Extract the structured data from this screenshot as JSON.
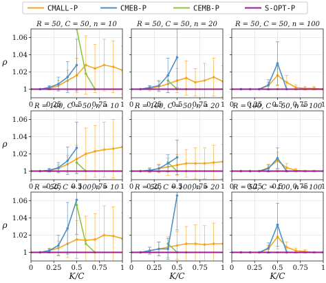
{
  "chart_data": {
    "type": "line",
    "legend": {
      "placement": "top",
      "entries": [
        {
          "name": "CMALL-P",
          "color": "#f5a623"
        },
        {
          "name": "CMEB-P",
          "color": "#4a90c8"
        },
        {
          "name": "CEMB-P",
          "color": "#8cc63f"
        },
        {
          "name": "S-OPT-P",
          "color": "#9b1b8e"
        }
      ]
    },
    "xlabel": "K/C",
    "ylabel": "ρ",
    "xlim": [
      0,
      1
    ],
    "ylim": [
      0.99,
      1.07
    ],
    "x_ticks": [
      "0",
      "0.25",
      "0.5",
      "0.75",
      "1"
    ],
    "y_ticks": [
      "1",
      "1.02",
      "1.04",
      "1.06"
    ],
    "y_tick_values": [
      1.0,
      1.02,
      1.04,
      1.06
    ],
    "x_tick_values": [
      0,
      0.25,
      0.5,
      0.75,
      1
    ],
    "panels": [
      {
        "title": "R = 50, C = 50, n = 10",
        "series": [
          {
            "name": "CMALL-P",
            "x": [
              0,
              0.1,
              0.2,
              0.3,
              0.4,
              0.5,
              0.6,
              0.7,
              0.8,
              0.9,
              1.0
            ],
            "y": [
              1.0,
              1.0,
              1.001,
              1.004,
              1.01,
              1.016,
              1.028,
              1.024,
              1.028,
              1.026,
              1.022
            ],
            "err": [
              0,
              0,
              0.002,
              0.006,
              0.012,
              0.02,
              0.034,
              0.028,
              0.03,
              0.03,
              0.028
            ]
          },
          {
            "name": "CMEB-P",
            "x": [
              0,
              0.1,
              0.2,
              0.3,
              0.4,
              0.5
            ],
            "y": [
              1.0,
              1.0,
              1.002,
              1.006,
              1.014,
              1.028
            ],
            "err": [
              0,
              0,
              0.002,
              0.008,
              0.018,
              0.03
            ]
          },
          {
            "name": "CEMB-P",
            "x": [
              0.5,
              0.6,
              0.7
            ],
            "y": [
              1.07,
              1.018,
              1.0
            ],
            "err": [
              0,
              0,
              0
            ]
          },
          {
            "name": "S-OPT-P",
            "x": [
              0,
              1
            ],
            "y": [
              1.0,
              1.0
            ],
            "err": [
              0,
              0
            ]
          }
        ]
      },
      {
        "title": "R = 50, C = 50, n = 20",
        "series": [
          {
            "name": "CMALL-P",
            "x": [
              0,
              0.1,
              0.2,
              0.3,
              0.4,
              0.5,
              0.6,
              0.7,
              0.8,
              0.9,
              1.0
            ],
            "y": [
              1.0,
              1.0,
              1.001,
              1.003,
              1.006,
              1.01,
              1.013,
              1.008,
              1.01,
              1.014,
              1.009
            ],
            "err": [
              0,
              0,
              0.003,
              0.006,
              0.01,
              0.014,
              0.02,
              0.016,
              0.02,
              0.022,
              0.018
            ]
          },
          {
            "name": "CMEB-P",
            "x": [
              0,
              0.1,
              0.2,
              0.3,
              0.4,
              0.5
            ],
            "y": [
              1.0,
              1.0,
              1.002,
              1.004,
              1.016,
              1.037
            ],
            "err": [
              0,
              0,
              0.002,
              0.006,
              0.02,
              0.035
            ]
          },
          {
            "name": "CEMB-P",
            "x": [
              0.4,
              0.5,
              0.6
            ],
            "y": [
              1.01,
              1.0,
              1.0
            ],
            "err": [
              0,
              0,
              0
            ]
          },
          {
            "name": "S-OPT-P",
            "x": [
              0,
              1
            ],
            "y": [
              1.0,
              1.0
            ],
            "err": [
              0,
              0
            ]
          }
        ]
      },
      {
        "title": "R = 50, C = 50, n = 100",
        "series": [
          {
            "name": "CMALL-P",
            "x": [
              0,
              0.1,
              0.2,
              0.3,
              0.4,
              0.5,
              0.6,
              0.7,
              0.8,
              0.9,
              1.0
            ],
            "y": [
              1.0,
              1.0,
              1.0,
              1.0,
              1.004,
              1.016,
              1.008,
              1.002,
              1.001,
              1.001,
              1.0
            ],
            "err": [
              0,
              0,
              0,
              0,
              0.004,
              0.012,
              0.008,
              0.003,
              0.002,
              0.002,
              0.001
            ]
          },
          {
            "name": "CMEB-P",
            "x": [
              0,
              0.1,
              0.2,
              0.3,
              0.4,
              0.5,
              0.6
            ],
            "y": [
              1.0,
              1.0,
              1.0,
              1.0,
              1.005,
              1.03,
              1.0
            ],
            "err": [
              0,
              0,
              0,
              0,
              0.006,
              0.025,
              0
            ]
          },
          {
            "name": "CEMB-P",
            "x": [
              0.4,
              0.5
            ],
            "y": [
              1.0,
              1.0
            ],
            "err": [
              0,
              0
            ]
          },
          {
            "name": "S-OPT-P",
            "x": [
              0,
              1
            ],
            "y": [
              1.0,
              1.0
            ],
            "err": [
              0,
              0
            ]
          }
        ]
      },
      {
        "title": "R = 100, C = 50, n = 10",
        "series": [
          {
            "name": "CMALL-P",
            "x": [
              0,
              0.1,
              0.2,
              0.3,
              0.4,
              0.5,
              0.6,
              0.7,
              0.8,
              0.9,
              1.0
            ],
            "y": [
              1.0,
              1.0,
              1.001,
              1.003,
              1.008,
              1.014,
              1.02,
              1.023,
              1.025,
              1.026,
              1.028
            ],
            "err": [
              0,
              0,
              0.002,
              0.004,
              0.01,
              0.016,
              0.03,
              0.03,
              0.032,
              0.034,
              0.034
            ]
          },
          {
            "name": "CMEB-P",
            "x": [
              0,
              0.1,
              0.2,
              0.3,
              0.4,
              0.5
            ],
            "y": [
              1.0,
              1.0,
              1.001,
              1.004,
              1.012,
              1.027
            ],
            "err": [
              0,
              0,
              0.002,
              0.006,
              0.016,
              0.03
            ]
          },
          {
            "name": "CEMB-P",
            "x": [
              0.5,
              0.6
            ],
            "y": [
              1.01,
              1.0
            ],
            "err": [
              0,
              0
            ]
          },
          {
            "name": "S-OPT-P",
            "x": [
              0,
              1
            ],
            "y": [
              1.0,
              1.0
            ],
            "err": [
              0,
              0
            ]
          }
        ]
      },
      {
        "title": "R = 100, C = 50, n = 20",
        "series": [
          {
            "name": "CMALL-P",
            "x": [
              0,
              0.1,
              0.2,
              0.3,
              0.4,
              0.5,
              0.6,
              0.7,
              0.8,
              0.9,
              1.0
            ],
            "y": [
              1.0,
              1.0,
              1.001,
              1.003,
              1.005,
              1.007,
              1.009,
              1.009,
              1.009,
              1.01,
              1.011
            ],
            "err": [
              0,
              0,
              0.003,
              0.005,
              0.01,
              0.012,
              0.016,
              0.018,
              0.018,
              0.02,
              0.02
            ]
          },
          {
            "name": "CMEB-P",
            "x": [
              0,
              0.1,
              0.2,
              0.3,
              0.4,
              0.5
            ],
            "y": [
              1.0,
              1.0,
              1.001,
              1.003,
              1.009,
              1.016
            ],
            "err": [
              0,
              0,
              0.002,
              0.004,
              0.01,
              0.02
            ]
          },
          {
            "name": "CEMB-P",
            "x": [
              0.4,
              0.5,
              0.6
            ],
            "y": [
              1.01,
              1.0,
              1.0
            ],
            "err": [
              0,
              0,
              0
            ]
          },
          {
            "name": "S-OPT-P",
            "x": [
              0,
              1
            ],
            "y": [
              1.0,
              1.0
            ],
            "err": [
              0,
              0
            ]
          }
        ]
      },
      {
        "title": "R = 100, C = 50, n = 100",
        "series": [
          {
            "name": "CMALL-P",
            "x": [
              0,
              0.1,
              0.2,
              0.3,
              0.4,
              0.5,
              0.6,
              0.7,
              0.8,
              0.9,
              1.0
            ],
            "y": [
              1.0,
              1.0,
              1.0,
              1.0,
              1.004,
              1.012,
              1.004,
              1.001,
              1.0,
              1.0,
              1.0
            ],
            "err": [
              0,
              0,
              0,
              0,
              0.004,
              0.01,
              0.005,
              0.002,
              0.001,
              0.001,
              0.0
            ]
          },
          {
            "name": "CMEB-P",
            "x": [
              0,
              0.1,
              0.2,
              0.3,
              0.4,
              0.5,
              0.6
            ],
            "y": [
              1.0,
              1.0,
              1.0,
              1.0,
              1.003,
              1.015,
              1.0
            ],
            "err": [
              0,
              0,
              0,
              0,
              0.004,
              0.012,
              0
            ]
          },
          {
            "name": "CEMB-P",
            "x": [
              0.4,
              0.5
            ],
            "y": [
              1.0,
              1.0
            ],
            "err": [
              0,
              0
            ]
          },
          {
            "name": "S-OPT-P",
            "x": [
              0,
              1
            ],
            "y": [
              1.0,
              1.0
            ],
            "err": [
              0,
              0
            ]
          }
        ]
      },
      {
        "title": "R = 50, C = 100, n = 10",
        "series": [
          {
            "name": "CMALL-P",
            "x": [
              0,
              0.1,
              0.2,
              0.3,
              0.4,
              0.5,
              0.6,
              0.7,
              0.8,
              0.9,
              1.0
            ],
            "y": [
              1.0,
              1.0,
              1.002,
              1.005,
              1.01,
              1.015,
              1.014,
              1.015,
              1.02,
              1.019,
              1.016
            ],
            "err": [
              0,
              0,
              0.003,
              0.008,
              0.016,
              0.022,
              0.028,
              0.03,
              0.034,
              0.034,
              0.03
            ]
          },
          {
            "name": "CMEB-P",
            "x": [
              0,
              0.1,
              0.2,
              0.3,
              0.4,
              0.5
            ],
            "y": [
              1.0,
              1.0,
              1.002,
              1.008,
              1.028,
              1.061
            ],
            "err": [
              0,
              0,
              0.002,
              0.012,
              0.03,
              0.04
            ]
          },
          {
            "name": "CEMB-P",
            "x": [
              0.5,
              0.6,
              0.7
            ],
            "y": [
              1.055,
              1.01,
              1.0
            ],
            "err": [
              0,
              0,
              0
            ]
          },
          {
            "name": "S-OPT-P",
            "x": [
              0,
              1
            ],
            "y": [
              1.0,
              1.0
            ],
            "err": [
              0,
              0
            ]
          }
        ]
      },
      {
        "title": "R = 50, C = 100, n = 20",
        "series": [
          {
            "name": "CMALL-P",
            "x": [
              0,
              0.1,
              0.2,
              0.3,
              0.4,
              0.5,
              0.6,
              0.7,
              0.8,
              0.9,
              1.0
            ],
            "y": [
              1.0,
              1.0,
              1.002,
              1.004,
              1.006,
              1.008,
              1.01,
              1.01,
              1.009,
              1.01,
              1.01
            ],
            "err": [
              0,
              0,
              0.004,
              0.008,
              0.012,
              0.016,
              0.02,
              0.022,
              0.022,
              0.024,
              0.024
            ]
          },
          {
            "name": "CMEB-P",
            "x": [
              0,
              0.1,
              0.2,
              0.3,
              0.4,
              0.5
            ],
            "y": [
              1.0,
              1.0,
              1.002,
              1.004,
              1.004,
              1.066
            ],
            "err": [
              0,
              0,
              0.004,
              0.008,
              0.012,
              0.04
            ]
          },
          {
            "name": "CEMB-P",
            "x": [
              0.4,
              0.5,
              0.6
            ],
            "y": [
              1.01,
              1.0,
              1.0
            ],
            "err": [
              0,
              0,
              0
            ]
          },
          {
            "name": "S-OPT-P",
            "x": [
              0,
              1
            ],
            "y": [
              1.0,
              1.0
            ],
            "err": [
              0,
              0
            ]
          }
        ]
      },
      {
        "title": "R = 50, C = 100, n = 100",
        "series": [
          {
            "name": "CMALL-P",
            "x": [
              0,
              0.1,
              0.2,
              0.3,
              0.4,
              0.5,
              0.6,
              0.7,
              0.8,
              0.9,
              1.0
            ],
            "y": [
              1.0,
              1.0,
              1.0,
              1.0,
              1.004,
              1.018,
              1.006,
              1.002,
              1.001,
              1.0,
              1.0
            ],
            "err": [
              0,
              0,
              0,
              0,
              0.004,
              0.014,
              0.006,
              0.003,
              0.002,
              0.001,
              0.001
            ]
          },
          {
            "name": "CMEB-P",
            "x": [
              0,
              0.1,
              0.2,
              0.3,
              0.4,
              0.5,
              0.6
            ],
            "y": [
              1.0,
              1.0,
              1.0,
              1.0,
              1.005,
              1.032,
              1.0
            ],
            "err": [
              0,
              0,
              0,
              0,
              0.006,
              0.025,
              0
            ]
          },
          {
            "name": "CEMB-P",
            "x": [
              0.4,
              0.5
            ],
            "y": [
              1.0,
              1.0
            ],
            "err": [
              0,
              0
            ]
          },
          {
            "name": "S-OPT-P",
            "x": [
              0,
              1
            ],
            "y": [
              1.0,
              1.0
            ],
            "err": [
              0,
              0
            ]
          }
        ]
      }
    ]
  }
}
